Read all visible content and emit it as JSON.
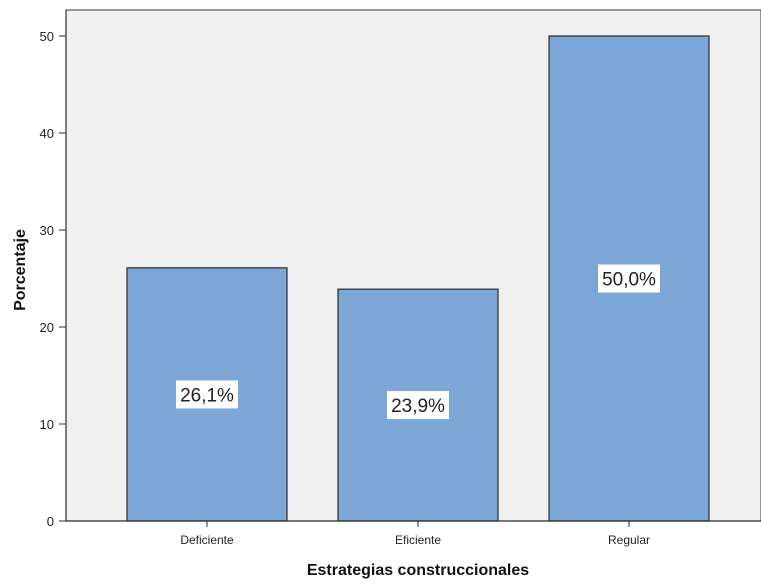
{
  "chart_data": {
    "type": "bar",
    "categories": [
      "Deficiente",
      "Eficiente",
      "Regular"
    ],
    "values": [
      26.1,
      23.9,
      50.0
    ],
    "data_labels": [
      "26,1%",
      "23,9%",
      "50,0%"
    ],
    "xlabel": "Estrategias construccionales",
    "ylabel": "Porcentaje",
    "ylim": [
      0,
      50
    ],
    "yticks": [
      "0",
      "10",
      "20",
      "30",
      "40",
      "50"
    ],
    "ytick_values": [
      0,
      10,
      20,
      30,
      40,
      50
    ],
    "grid": false,
    "colors": {
      "bar_fill": "#7ba6d6",
      "bar_stroke": "#2b2b2b",
      "plot_background": "#f0f0f0",
      "label_background": "#ffffff"
    }
  }
}
